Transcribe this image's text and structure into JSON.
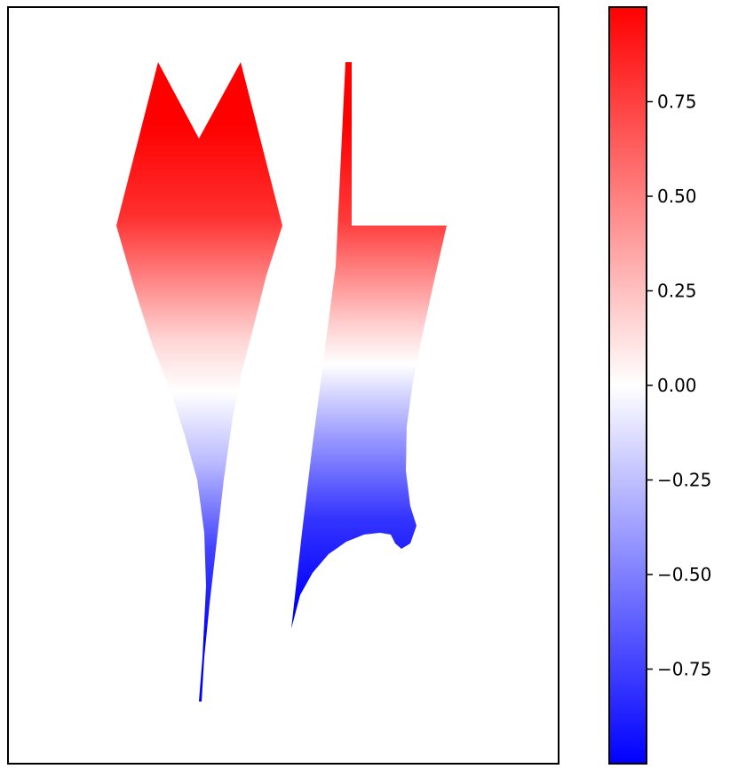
{
  "chart_data": [
    {
      "type": "heatmap",
      "title": "",
      "xlabel": "",
      "ylabel": "",
      "grid": false,
      "colormap": "bwr",
      "axes_ticks_visible": false,
      "shapes": [
        {
          "name": "left-glyph",
          "description_of_values": "pseudocolor field clipped to glyph; value decreases from top (+1) to bottom (-1)"
        },
        {
          "name": "right-glyph",
          "description_of_values": "pseudocolor field clipped to glyph; value decreases from top (+1) to bottom (-1)"
        }
      ]
    },
    {
      "type": "colorbar",
      "range": [
        -1,
        1
      ],
      "colors": {
        "low": "#0000ff",
        "mid": "#ffffff",
        "high": "#ff0000"
      },
      "ticks": [
        {
          "value": 0.75,
          "label": "0.75"
        },
        {
          "value": 0.5,
          "label": "0.50"
        },
        {
          "value": 0.25,
          "label": "0.25"
        },
        {
          "value": 0.0,
          "label": "0.00"
        },
        {
          "value": -0.25,
          "label": "−0.25"
        },
        {
          "value": -0.5,
          "label": "−0.50"
        },
        {
          "value": -0.75,
          "label": "−0.75"
        }
      ]
    }
  ]
}
